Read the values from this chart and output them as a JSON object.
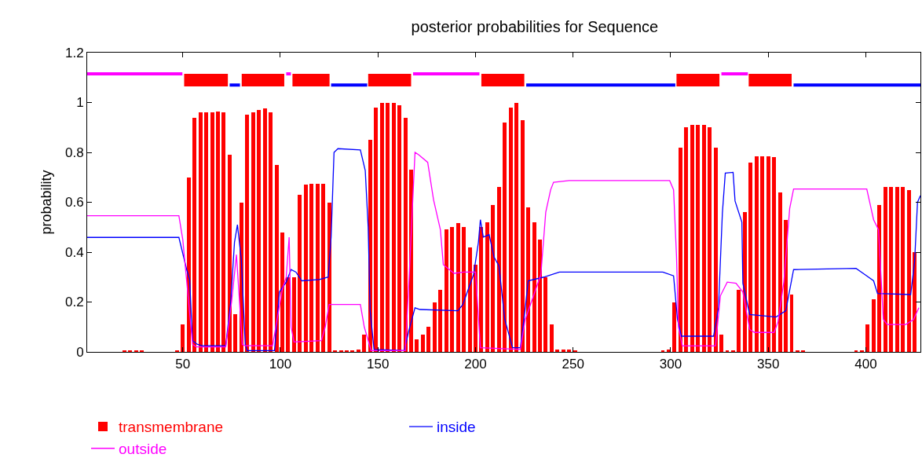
{
  "chart_data": {
    "type": "line",
    "title": "posterior probabilities for Sequence",
    "ylabel": "probability",
    "xlim": [
      1,
      428
    ],
    "xticks": [
      50,
      100,
      150,
      200,
      250,
      300,
      350,
      400
    ],
    "ylim": [
      0,
      1.2
    ],
    "yticks": [
      0,
      0.2,
      0.4,
      0.6,
      0.8,
      1,
      1.2
    ],
    "legend": "bottom",
    "marker": "none",
    "series": [
      {
        "name": "transmembrane",
        "type": "bar",
        "color": "#ff0000",
        "x": [
          2,
          5,
          8,
          11,
          14,
          17,
          20,
          23,
          26,
          29,
          32,
          35,
          38,
          41,
          44,
          47,
          50,
          53,
          56,
          59,
          62,
          65,
          68,
          71,
          74,
          77,
          80,
          83,
          86,
          89,
          92,
          95,
          98,
          101,
          104,
          107,
          110,
          113,
          116,
          119,
          122,
          125,
          128,
          131,
          134,
          137,
          140,
          143,
          146,
          149,
          152,
          155,
          158,
          161,
          164,
          167,
          170,
          173,
          176,
          179,
          182,
          185,
          188,
          191,
          194,
          197,
          200,
          203,
          206,
          209,
          212,
          215,
          218,
          221,
          224,
          227,
          230,
          233,
          236,
          239,
          242,
          245,
          248,
          251,
          254,
          257,
          260,
          263,
          266,
          269,
          272,
          275,
          278,
          281,
          284,
          287,
          290,
          293,
          296,
          299,
          302,
          305,
          308,
          311,
          314,
          317,
          320,
          323,
          326,
          329,
          332,
          335,
          338,
          341,
          344,
          347,
          350,
          353,
          356,
          359,
          362,
          365,
          368,
          371,
          374,
          377,
          380,
          383,
          386,
          389,
          392,
          395,
          398,
          401,
          404,
          407,
          410,
          413,
          416,
          419,
          422,
          425
        ],
        "values": [
          0,
          0,
          0,
          0,
          0,
          0,
          0.005,
          0.005,
          0.005,
          0.005,
          0,
          0,
          0,
          0,
          0,
          0.005,
          0.11,
          0.7,
          0.94,
          0.96,
          0.96,
          0.96,
          0.965,
          0.96,
          0.79,
          0.15,
          0.6,
          0.95,
          0.96,
          0.97,
          0.975,
          0.96,
          0.75,
          0.48,
          0.3,
          0.3,
          0.63,
          0.67,
          0.675,
          0.675,
          0.675,
          0.6,
          0.005,
          0.005,
          0.005,
          0.005,
          0.01,
          0.07,
          0.85,
          0.98,
          1,
          1,
          1,
          0.99,
          0.94,
          0.73,
          0.05,
          0.07,
          0.1,
          0.2,
          0.25,
          0.49,
          0.5,
          0.515,
          0.5,
          0.42,
          0.35,
          0.5,
          0.52,
          0.59,
          0.66,
          0.92,
          0.98,
          1,
          0.93,
          0.58,
          0.52,
          0.45,
          0.3,
          0.11,
          0.01,
          0.01,
          0.01,
          0.005,
          0,
          0,
          0,
          0,
          0,
          0,
          0,
          0,
          0,
          0,
          0,
          0,
          0,
          0,
          0.005,
          0.01,
          0.2,
          0.82,
          0.9,
          0.91,
          0.91,
          0.91,
          0.9,
          0.82,
          0.07,
          0.005,
          0.005,
          0.25,
          0.56,
          0.76,
          0.785,
          0.785,
          0.785,
          0.78,
          0.64,
          0.53,
          0.23,
          0.005,
          0.005,
          0,
          0,
          0,
          0,
          0,
          0,
          0,
          0,
          0.005,
          0.005,
          0.11,
          0.21,
          0.59,
          0.66,
          0.66,
          0.66,
          0.66,
          0.65,
          0.4
        ]
      },
      {
        "name": "inside",
        "color": "#0000ff",
        "x": [
          1,
          48,
          52,
          53.5,
          55,
          57.5,
          60,
          72,
          74.5,
          76.5,
          78,
          80,
          82,
          83,
          97,
          99.5,
          103,
          105.5,
          108,
          111,
          120,
          124.5,
          126,
          127.5,
          129.5,
          141,
          143.5,
          145,
          146,
          148,
          163.5,
          166,
          169,
          171.5,
          191,
          193.5,
          199,
          201.5,
          202.5,
          204,
          207,
          209.5,
          212,
          215,
          219,
          223,
          225.5,
          227,
          235,
          243,
          296,
          301.5,
          303.5,
          305.5,
          322,
          324.5,
          326.5,
          328,
          332,
          333,
          336.5,
          337,
          340.5,
          354,
          359,
          363,
          395,
          399.5,
          404,
          406,
          423,
          425,
          426.5,
          428
        ],
        "values": [
          0.459,
          0.459,
          0.33,
          0.29,
          0.045,
          0.03,
          0.025,
          0.025,
          0.196,
          0.44,
          0.51,
          0.37,
          0.03,
          0.005,
          0.005,
          0.24,
          0.28,
          0.33,
          0.32,
          0.285,
          0.29,
          0.3,
          0.46,
          0.8,
          0.815,
          0.81,
          0.727,
          0.5,
          0.165,
          0.01,
          0.005,
          0.09,
          0.177,
          0.17,
          0.165,
          0.19,
          0.31,
          0.44,
          0.53,
          0.46,
          0.47,
          0.38,
          0.345,
          0.13,
          0.017,
          0.017,
          0.177,
          0.285,
          0.3,
          0.32,
          0.32,
          0.305,
          0.13,
          0.063,
          0.063,
          0.177,
          0.556,
          0.717,
          0.72,
          0.605,
          0.52,
          0.275,
          0.15,
          0.14,
          0.165,
          0.33,
          0.335,
          0.31,
          0.285,
          0.234,
          0.23,
          0.36,
          0.6,
          0.627
        ]
      },
      {
        "name": "outside",
        "color": "#ff00ff",
        "x": [
          1,
          48,
          50,
          53,
          55,
          57,
          72,
          75,
          77.5,
          80.5,
          82,
          96,
          101,
          103,
          104.5,
          105.5,
          107,
          121,
          123,
          125,
          141,
          143,
          146.5,
          164,
          166,
          169,
          171,
          175.5,
          178.5,
          182,
          183.5,
          189,
          194,
          200,
          202.5,
          223,
          225.5,
          233.5,
          236,
          238.5,
          240,
          248,
          299.5,
          301.5,
          303,
          304,
          306,
          323,
          325.5,
          329,
          333.5,
          337,
          340.5,
          343,
          353,
          355,
          358,
          361,
          363,
          400.5,
          404,
          406.5,
          409,
          411,
          420.5,
          424.5,
          427.2
        ],
        "values": [
          0.546,
          0.546,
          0.45,
          0.2,
          0.03,
          0.02,
          0.02,
          0.2,
          0.39,
          0.03,
          0.025,
          0.025,
          0.25,
          0.3,
          0.46,
          0.1,
          0.04,
          0.045,
          0.1,
          0.19,
          0.19,
          0.1,
          0.005,
          0.005,
          0.3,
          0.8,
          0.79,
          0.76,
          0.61,
          0.49,
          0.35,
          0.315,
          0.32,
          0.32,
          0.017,
          0.01,
          0.13,
          0.31,
          0.56,
          0.65,
          0.68,
          0.687,
          0.687,
          0.65,
          0.385,
          0.1,
          0.024,
          0.024,
          0.225,
          0.28,
          0.275,
          0.24,
          0.09,
          0.078,
          0.078,
          0.12,
          0.28,
          0.575,
          0.653,
          0.653,
          0.53,
          0.49,
          0.13,
          0.11,
          0.11,
          0.13,
          0.177
        ]
      },
      {
        "color": "#ff0000",
        "x": [
          50.7,
          73.1,
          null,
          80.2,
          102,
          null,
          106.2,
          125.2,
          null,
          145,
          167,
          null,
          203,
          225,
          null,
          303,
          325,
          null,
          340,
          362
        ],
        "values": [
          1.09,
          1.09,
          null,
          1.09,
          1.09,
          null,
          1.09,
          1.09,
          null,
          1.09,
          1.09,
          null,
          1.09,
          1.09,
          null,
          1.09,
          1.09,
          null,
          1.09,
          1.09
        ]
      },
      {
        "color": "#ff00ff",
        "x": [
          1,
          49.8,
          null,
          103,
          105.4,
          null,
          168,
          202,
          null,
          326,
          339.6
        ],
        "values": [
          1.115,
          1.115,
          null,
          1.115,
          1.115,
          null,
          1.115,
          1.115,
          null,
          1.115,
          1.115
        ]
      },
      {
        "color": "#0000ff",
        "x": [
          74,
          79.3,
          null,
          126,
          144.5,
          null,
          226,
          302.4,
          null,
          363,
          428
        ],
        "values": [
          1.07,
          1.07,
          null,
          1.07,
          1.07,
          null,
          1.07,
          1.07,
          null,
          1.07,
          1.07
        ]
      }
    ]
  }
}
